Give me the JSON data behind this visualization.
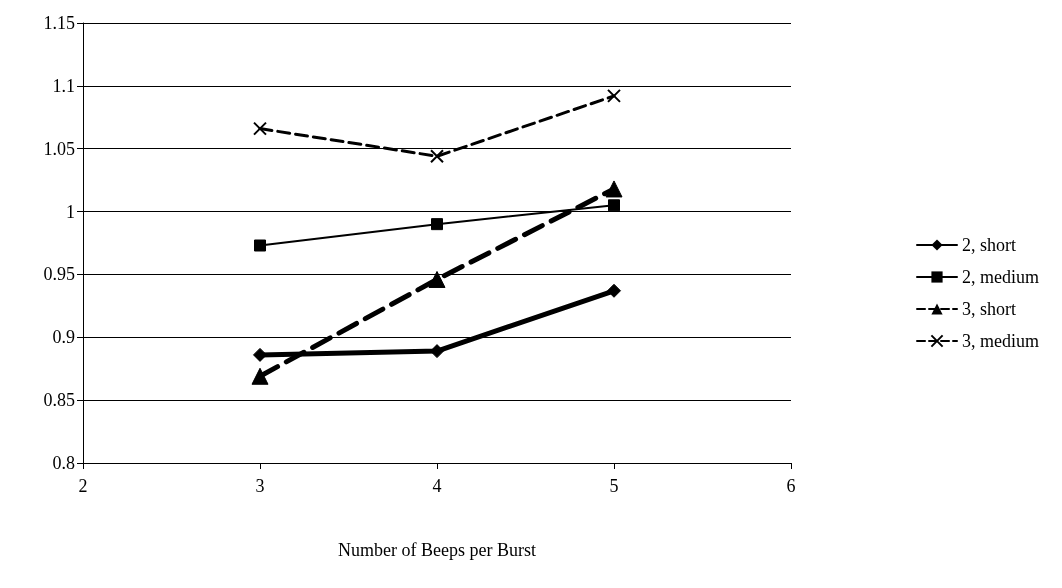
{
  "chart_data": {
    "type": "line",
    "xlabel": "Number of Beeps per Burst",
    "xlim": [
      2,
      6
    ],
    "xticks": [
      2,
      3,
      4,
      5,
      6
    ],
    "ylim": [
      0.8,
      1.15
    ],
    "yticks": [
      0.8,
      0.85,
      0.9,
      0.95,
      1,
      1.05,
      1.1,
      1.15
    ],
    "grid": "y",
    "legend": "right",
    "series": [
      {
        "name": "2, short",
        "color": "#000000",
        "x": [
          3,
          4,
          5
        ],
        "values": [
          0.886,
          0.889,
          0.937
        ],
        "marker": "diamond",
        "line_style": "solid"
      },
      {
        "name": "2, medium",
        "color": "#000000",
        "x": [
          3,
          4,
          5
        ],
        "values": [
          0.973,
          0.99,
          1.005
        ],
        "marker": "square",
        "line_style": "solid"
      },
      {
        "name": "3, short",
        "color": "#000000",
        "x": [
          3,
          4,
          5
        ],
        "values": [
          0.869,
          0.946,
          1.018
        ],
        "marker": "triangle",
        "line_style": "dashed"
      },
      {
        "name": "3, medium",
        "color": "#000000",
        "x": [
          3,
          4,
          5
        ],
        "values": [
          1.066,
          1.044,
          1.092
        ],
        "marker": "cross",
        "line_style": "dashed"
      }
    ]
  }
}
